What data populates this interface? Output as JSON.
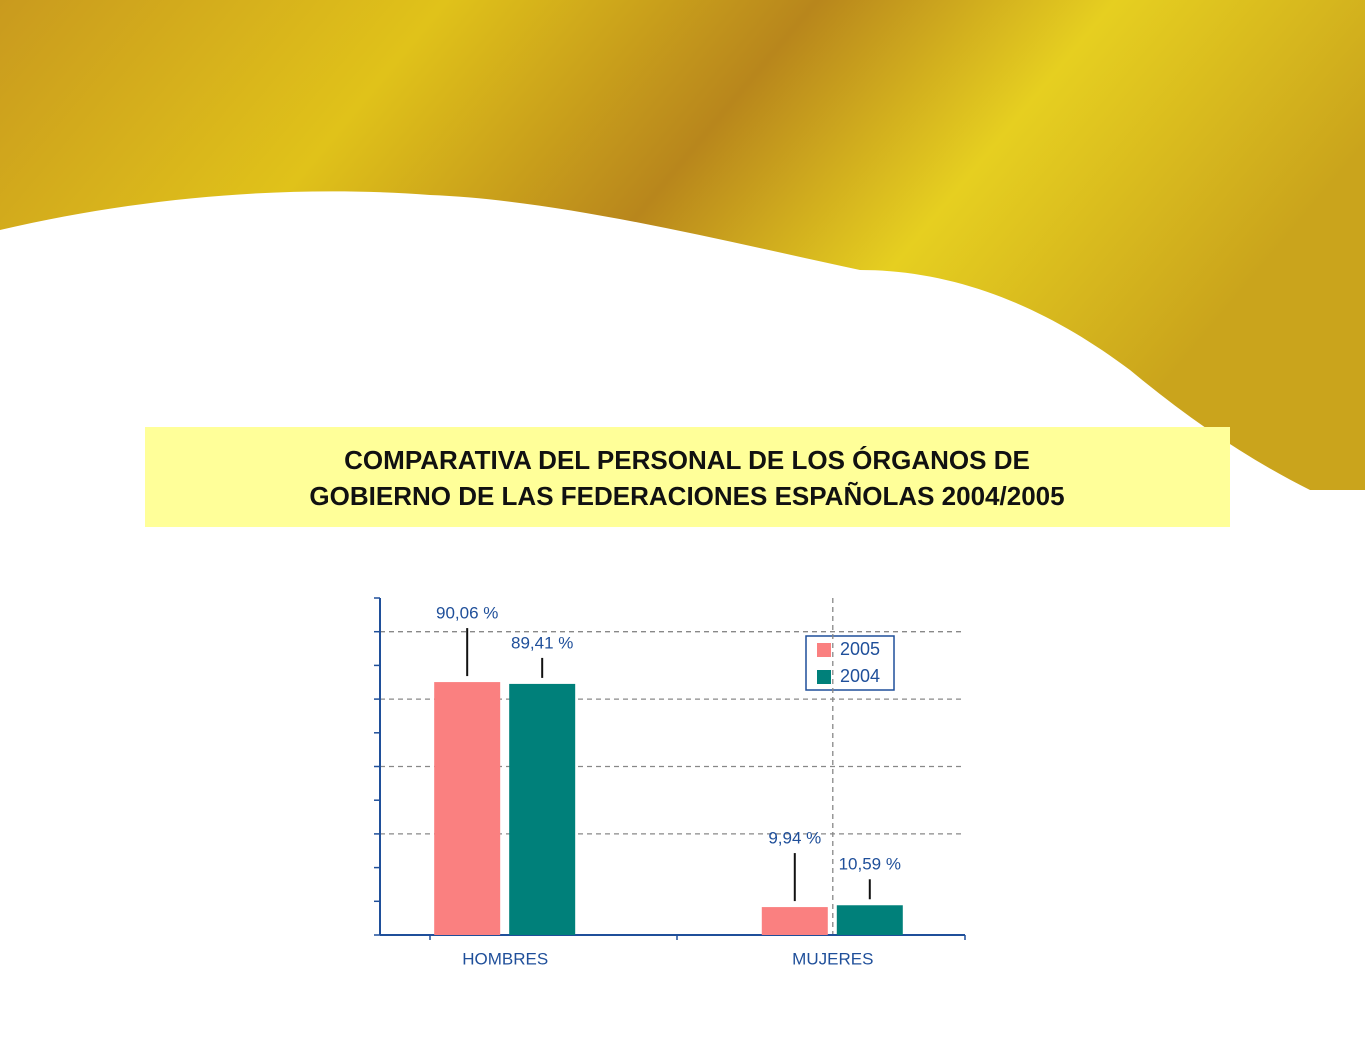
{
  "chart_data": {
    "type": "bar",
    "title": "COMPARATIVA DEL PERSONAL DE LOS ÓRGANOS DE GOBIERNO DE LAS FEDERACIONES ESPAÑOLAS 2004/2005",
    "categories": [
      "HOMBRES",
      "MUJERES"
    ],
    "series": [
      {
        "name": "2005",
        "color": "#fa8080",
        "values": [
          90.06,
          9.94
        ],
        "value_labels": [
          "90,06 %",
          "9,94 %"
        ]
      },
      {
        "name": "2004",
        "color": "#00807a",
        "values": [
          89.41,
          10.59
        ],
        "value_labels": [
          "89,41 %",
          "10,59 %"
        ]
      }
    ],
    "ylim": [
      0,
      120
    ],
    "yticks": [
      0,
      12,
      24,
      36,
      48,
      60,
      72,
      84,
      96,
      108,
      120
    ],
    "ygrid": [
      36,
      60,
      84,
      108
    ],
    "grid": true,
    "legend": "upper right"
  }
}
